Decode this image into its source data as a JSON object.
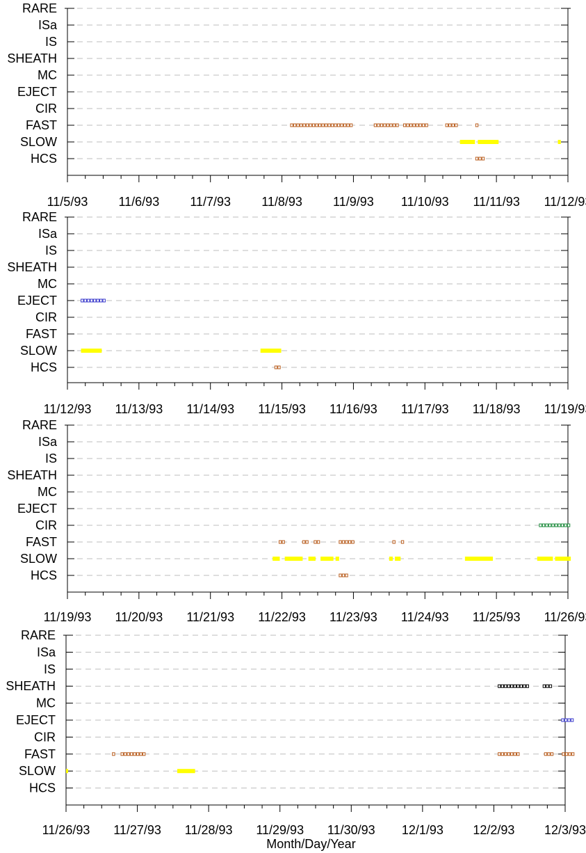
{
  "xlabel": "Month/Day/Year",
  "colors": {
    "grid": "#bdbdbd",
    "slow": "#ffff00",
    "fast": "#b85c1c",
    "hcs": "#b85c1c",
    "eject": "#3a3acc",
    "cir": "#1a8a3a",
    "sheath": "#000000",
    "axis": "#000000"
  },
  "chart_data": [
    {
      "type": "timeline",
      "categories": [
        "RARE",
        "ISa",
        "IS",
        "SHEATH",
        "MC",
        "EJECT",
        "CIR",
        "FAST",
        "SLOW",
        "HCS"
      ],
      "x_range": [
        "11/5/93",
        "11/12/93"
      ],
      "x_ticks": [
        "11/5/93",
        "11/6/93",
        "11/7/93",
        "11/8/93",
        "11/9/93",
        "11/10/93",
        "11/11/93",
        "11/12/93"
      ],
      "intervals": [
        {
          "category": "FAST",
          "start": 3.12,
          "end": 4.0,
          "style": "squares"
        },
        {
          "category": "FAST",
          "start": 4.29,
          "end": 4.65,
          "style": "squares"
        },
        {
          "category": "FAST",
          "start": 4.7,
          "end": 5.04,
          "style": "squares"
        },
        {
          "category": "FAST",
          "start": 5.29,
          "end": 5.48,
          "style": "squares"
        },
        {
          "category": "FAST",
          "start": 5.71,
          "end": 5.75,
          "style": "squares"
        },
        {
          "category": "SLOW",
          "start": 5.49,
          "end": 5.7,
          "style": "bar"
        },
        {
          "category": "SLOW",
          "start": 5.74,
          "end": 6.03,
          "style": "bar"
        },
        {
          "category": "SLOW",
          "start": 6.86,
          "end": 6.9,
          "style": "bar"
        },
        {
          "category": "HCS",
          "start": 5.71,
          "end": 5.82,
          "style": "squares"
        }
      ]
    },
    {
      "type": "timeline",
      "categories": [
        "RARE",
        "ISa",
        "IS",
        "SHEATH",
        "MC",
        "EJECT",
        "CIR",
        "FAST",
        "SLOW",
        "HCS"
      ],
      "x_range": [
        "11/12/93",
        "11/19/93"
      ],
      "x_ticks": [
        "11/12/93",
        "11/13/93",
        "11/14/93",
        "11/15/93",
        "11/16/93",
        "11/17/93",
        "11/18/93",
        "11/19/93"
      ],
      "intervals": [
        {
          "category": "EJECT",
          "start": 0.19,
          "end": 0.52,
          "style": "squares"
        },
        {
          "category": "SLOW",
          "start": 0.19,
          "end": 0.48,
          "style": "bar"
        },
        {
          "category": "SLOW",
          "start": 2.7,
          "end": 2.99,
          "style": "bar"
        },
        {
          "category": "HCS",
          "start": 2.9,
          "end": 2.98,
          "style": "squares"
        }
      ]
    },
    {
      "type": "timeline",
      "categories": [
        "RARE",
        "ISa",
        "IS",
        "SHEATH",
        "MC",
        "EJECT",
        "CIR",
        "FAST",
        "SLOW",
        "HCS"
      ],
      "x_range": [
        "11/19/93",
        "11/26/93"
      ],
      "x_ticks": [
        "11/19/93",
        "11/20/93",
        "11/21/93",
        "11/22/93",
        "11/23/93",
        "11/24/93",
        "11/25/93",
        "11/26/93"
      ],
      "intervals": [
        {
          "category": "CIR",
          "start": 6.6,
          "end": 7.02,
          "style": "squares"
        },
        {
          "category": "FAST",
          "start": 2.96,
          "end": 3.03,
          "style": "squares"
        },
        {
          "category": "FAST",
          "start": 3.29,
          "end": 3.37,
          "style": "squares"
        },
        {
          "category": "FAST",
          "start": 3.45,
          "end": 3.53,
          "style": "squares"
        },
        {
          "category": "FAST",
          "start": 3.8,
          "end": 4.0,
          "style": "squares"
        },
        {
          "category": "FAST",
          "start": 4.55,
          "end": 4.6,
          "style": "squares"
        },
        {
          "category": "FAST",
          "start": 4.67,
          "end": 4.72,
          "style": "squares"
        },
        {
          "category": "SLOW",
          "start": 2.87,
          "end": 2.97,
          "style": "bar"
        },
        {
          "category": "SLOW",
          "start": 3.04,
          "end": 3.29,
          "style": "bar"
        },
        {
          "category": "SLOW",
          "start": 3.37,
          "end": 3.47,
          "style": "bar"
        },
        {
          "category": "SLOW",
          "start": 3.54,
          "end": 3.72,
          "style": "bar"
        },
        {
          "category": "SLOW",
          "start": 3.75,
          "end": 3.8,
          "style": "bar"
        },
        {
          "category": "SLOW",
          "start": 4.5,
          "end": 4.55,
          "style": "bar"
        },
        {
          "category": "SLOW",
          "start": 4.58,
          "end": 4.66,
          "style": "bar"
        },
        {
          "category": "SLOW",
          "start": 5.56,
          "end": 5.95,
          "style": "bar"
        },
        {
          "category": "SLOW",
          "start": 6.57,
          "end": 6.79,
          "style": "bar"
        },
        {
          "category": "SLOW",
          "start": 6.82,
          "end": 7.04,
          "style": "bar"
        },
        {
          "category": "HCS",
          "start": 3.8,
          "end": 3.92,
          "style": "squares"
        }
      ]
    },
    {
      "type": "timeline",
      "categories": [
        "RARE",
        "ISa",
        "IS",
        "SHEATH",
        "MC",
        "EJECT",
        "CIR",
        "FAST",
        "SLOW",
        "HCS"
      ],
      "x_range": [
        "11/26/93",
        "12/3/93"
      ],
      "x_ticks": [
        "11/26/93",
        "11/27/93",
        "11/28/93",
        "11/29/93",
        "11/30/93",
        "12/1/93",
        "12/2/93",
        "12/3/93"
      ],
      "intervals": [
        {
          "category": "SHEATH",
          "start": 6.06,
          "end": 6.5,
          "style": "squares"
        },
        {
          "category": "SHEATH",
          "start": 6.69,
          "end": 6.84,
          "style": "squares"
        },
        {
          "category": "EJECT",
          "start": 6.95,
          "end": 7.14,
          "style": "squares"
        },
        {
          "category": "FAST",
          "start": 0.65,
          "end": 0.69,
          "style": "squares"
        },
        {
          "category": "FAST",
          "start": 0.77,
          "end": 1.14,
          "style": "squares"
        },
        {
          "category": "FAST",
          "start": 6.06,
          "end": 6.38,
          "style": "squares"
        },
        {
          "category": "FAST",
          "start": 6.71,
          "end": 6.83,
          "style": "squares"
        },
        {
          "category": "FAST",
          "start": 6.96,
          "end": 7.15,
          "style": "squares"
        },
        {
          "category": "SLOW",
          "start": 0.0,
          "end": 0.02,
          "style": "bar"
        },
        {
          "category": "SLOW",
          "start": 1.56,
          "end": 1.81,
          "style": "bar"
        }
      ]
    }
  ]
}
